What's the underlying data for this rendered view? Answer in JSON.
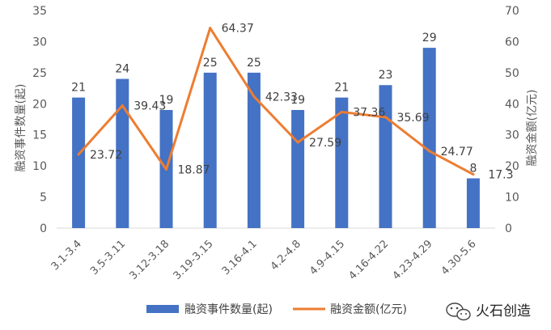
{
  "chart_data": {
    "type": "bar",
    "categories": [
      "3.1-3.4",
      "3.5-3.11",
      "3.12-3.18",
      "3.19-3.15",
      "3.16-4.1",
      "4.2-4.8",
      "4.9-4.15",
      "4.16-4.22",
      "4.23-4.29",
      "4.30-5.6"
    ],
    "series": [
      {
        "name": "融资事件数量(起)",
        "type": "bar",
        "axis": "left",
        "color": "#4472C4",
        "values": [
          21,
          24,
          19,
          25,
          25,
          19,
          21,
          23,
          29,
          8
        ]
      },
      {
        "name": "融资金额(亿元)",
        "type": "line",
        "axis": "right",
        "color": "#ED7D31",
        "values": [
          23.72,
          39.43,
          18.87,
          64.37,
          42.33,
          27.59,
          37.36,
          35.69,
          24.77,
          17.3
        ]
      }
    ],
    "bar_labels": [
      "21",
      "24",
      "19",
      "25",
      "25",
      "19",
      "21",
      "23",
      "29",
      "8"
    ],
    "line_labels": [
      "23.72",
      "39.43",
      "18.87",
      "64.37",
      "42.33",
      "27.59",
      "37.36",
      "35.69",
      "24.77",
      "17.3"
    ],
    "ylabel": "融资事件数量(起)",
    "y2label": "融资金额(亿元)",
    "ylim": [
      0,
      35
    ],
    "y2lim": [
      0,
      70
    ],
    "yticks": [
      "0",
      "5",
      "10",
      "15",
      "20",
      "25",
      "30",
      "35"
    ],
    "y2ticks": [
      "0",
      "10",
      "20",
      "30",
      "40",
      "50",
      "60",
      "70"
    ],
    "grid": false,
    "legend_position": "bottom"
  },
  "watermark": {
    "text": "火石创造",
    "icon": "wechat-icon"
  }
}
